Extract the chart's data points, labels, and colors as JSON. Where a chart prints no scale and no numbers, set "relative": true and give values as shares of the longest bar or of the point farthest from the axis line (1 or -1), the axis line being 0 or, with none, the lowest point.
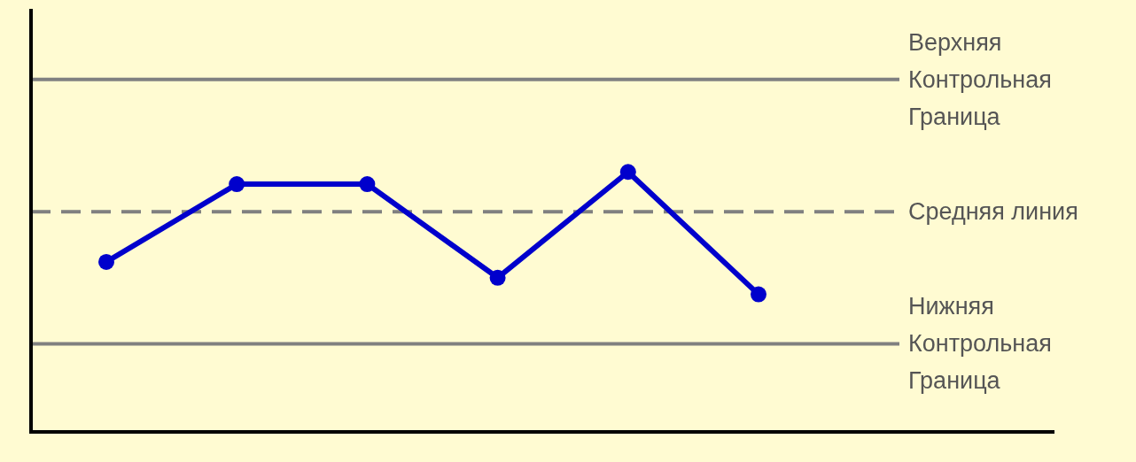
{
  "chart_data": {
    "type": "line",
    "relative": true,
    "categories": [
      null,
      null,
      null,
      null,
      null,
      null
    ],
    "series": [
      {
        "color": "#0000cc",
        "values": [
          0.654,
          0.953,
          0.953,
          0.593,
          1,
          0.529
        ]
      }
    ],
    "marker": "circle",
    "line_style": "solid",
    "ref_lines": [
      {
        "axis": "y",
        "value": 1.356,
        "label": "Верхняя\nКонтрольная\nГраница",
        "color": "#808080",
        "line_style": "solid"
      },
      {
        "axis": "y",
        "value": 0.847,
        "label": "Средняя линия",
        "color": "#808080",
        "line_style": "dashed"
      },
      {
        "axis": "y",
        "value": 0.339,
        "label": "Нижняя\nКонтрольная\nГраница",
        "color": "#808080",
        "line_style": "solid"
      }
    ]
  }
}
